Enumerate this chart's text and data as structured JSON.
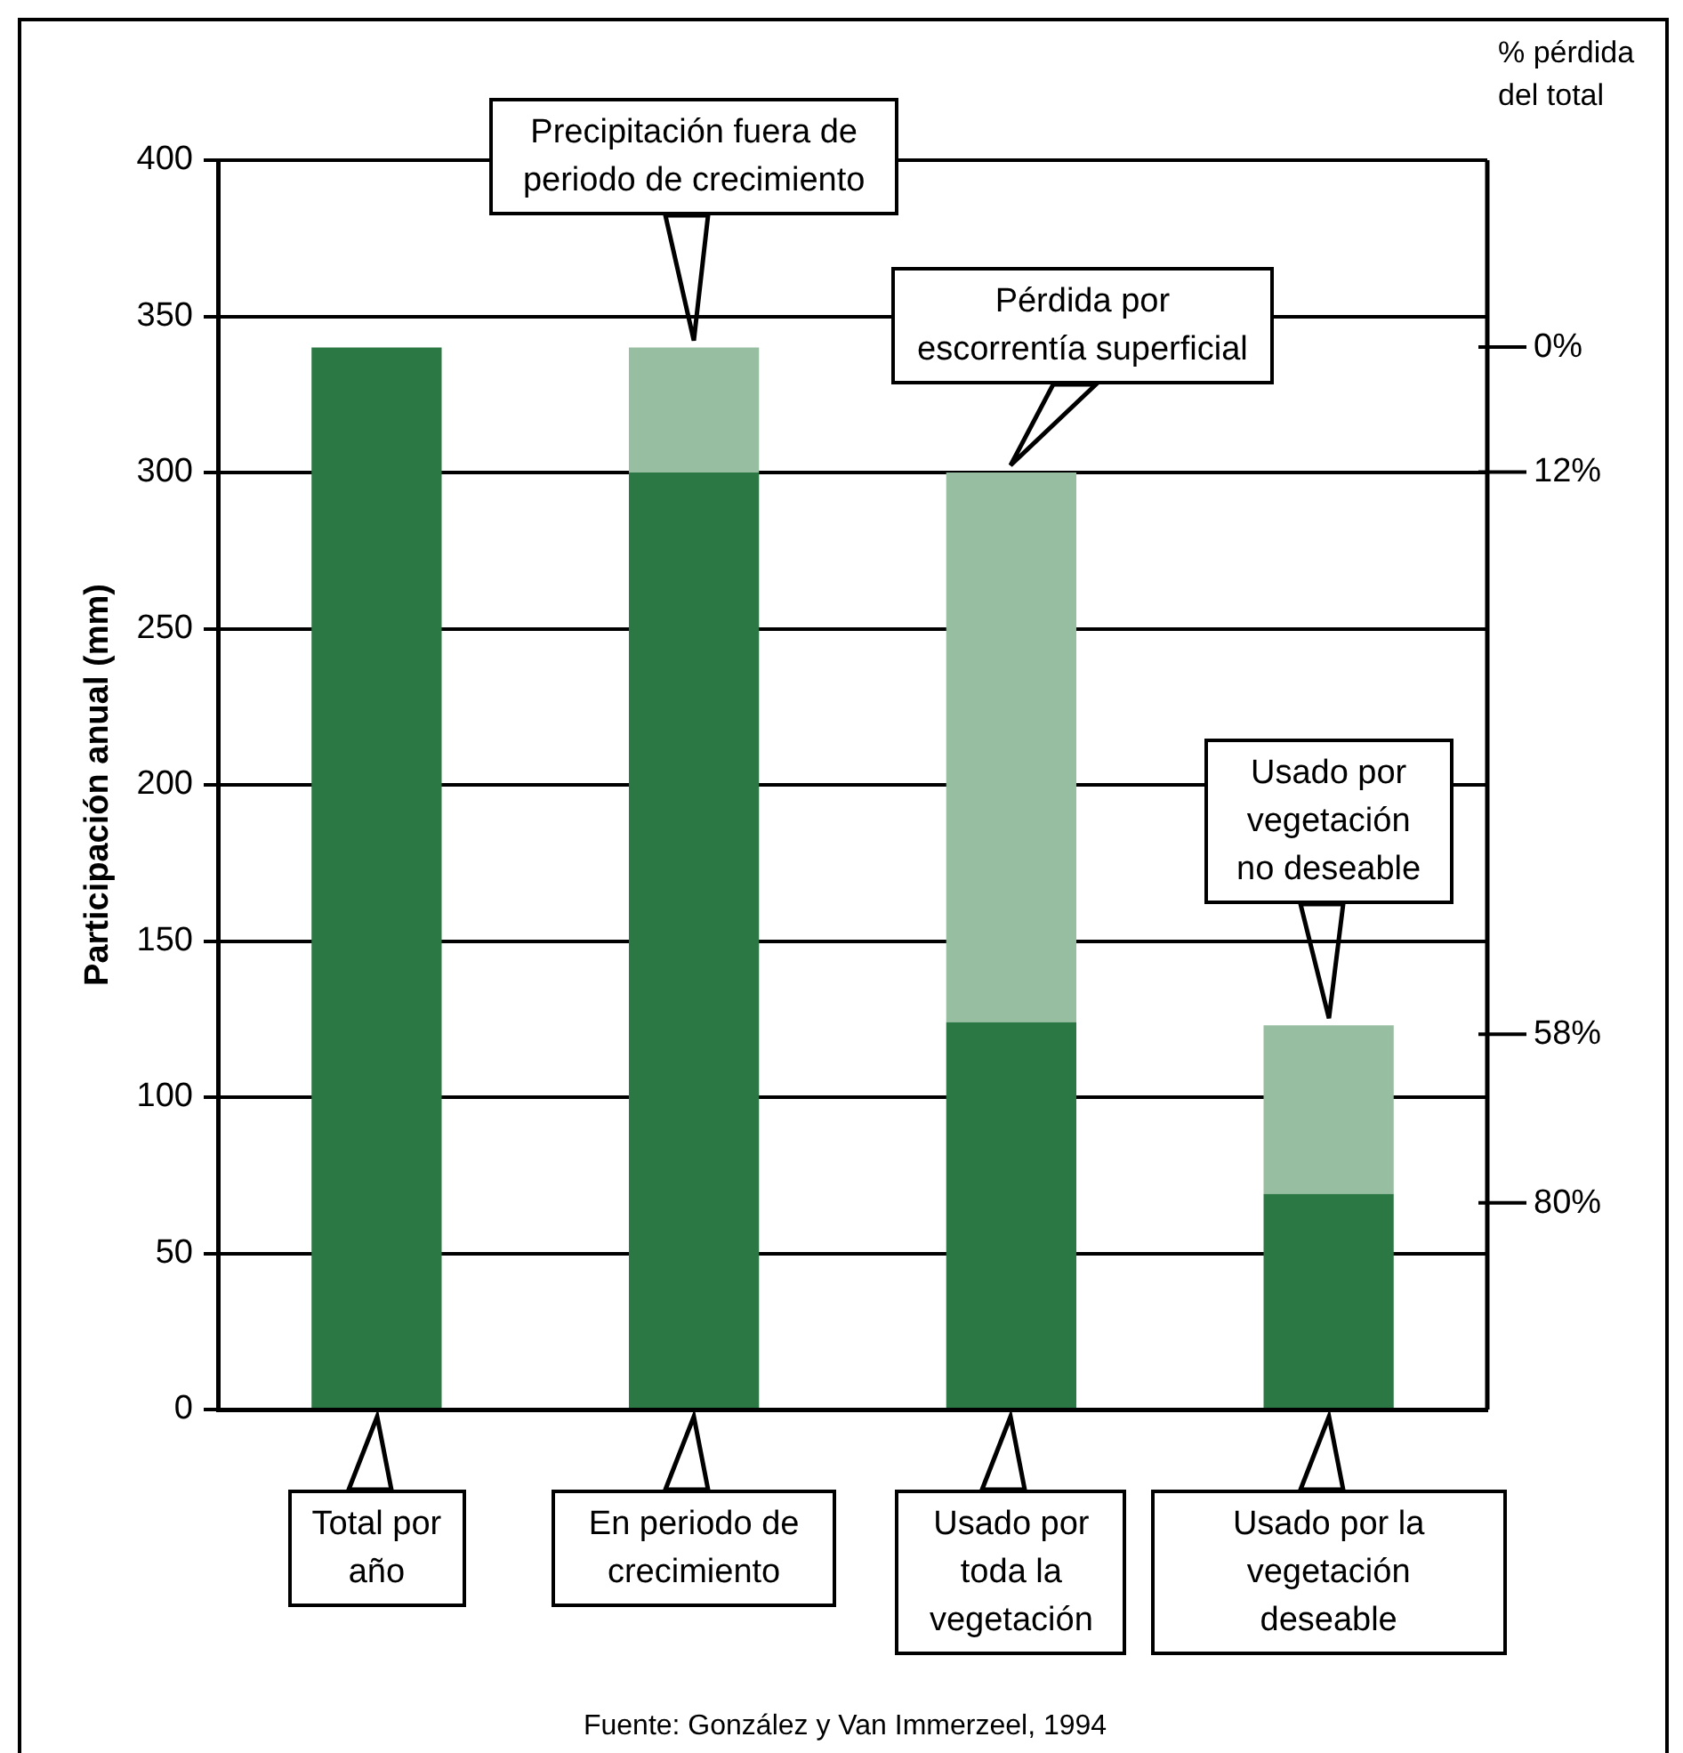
{
  "chart_data": {
    "type": "bar",
    "stacked": true,
    "ylabel": "Participación anual (mm)",
    "categories": [
      "Total por año",
      "En periodo de crecimiento",
      "Usado por toda la vegetación",
      "Usado por la vegetación deseable"
    ],
    "series": [
      {
        "color": "#2c7844",
        "values": [
          340,
          300,
          124,
          69
        ]
      },
      {
        "color": "#97bea0",
        "values": [
          0,
          40,
          176,
          54
        ]
      }
    ],
    "ylim": [
      0,
      400
    ],
    "yticks": [
      0,
      50,
      100,
      150,
      200,
      250,
      300,
      350,
      400
    ],
    "grid": "y",
    "legend": false,
    "annotations": [
      "Precipitación fuera de periodo de crecimiento",
      "Pérdida por escorrentía superficial",
      "Usado por vegetación no deseable",
      "% pérdida del total",
      "0%",
      "12%",
      "58%",
      "80%",
      "Fuente: González y Van Immerzeel, 1994"
    ]
  }
}
